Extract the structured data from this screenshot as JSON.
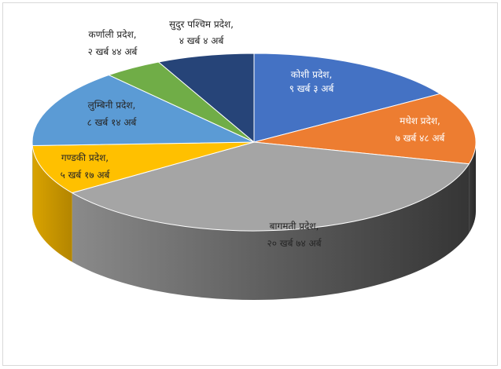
{
  "chart_data": {
    "type": "pie",
    "style": "3d",
    "title": "",
    "slices": [
      {
        "category": "कोशी प्रदेश,",
        "value_text": "९ खर्ब ३ अर्ब",
        "value": 903,
        "color": "#4472c4",
        "label_color": "#ffffff"
      },
      {
        "category": "मधेश प्रदेश,",
        "value_text": "७ खर्ब ४८ अर्ब",
        "value": 748,
        "color": "#ed7d31",
        "label_color": "#ffffff"
      },
      {
        "category": "बागमती प्रदेश,",
        "value_text": "२० खर्ब ७४ अर्ब",
        "value": 2074,
        "color": "#a5a5a5",
        "label_color": "#262626"
      },
      {
        "category": "गण्डकी प्रदेश,",
        "value_text": "५ खर्ब १७ अर्ब",
        "value": 517,
        "color": "#ffc000",
        "label_color": "#262626"
      },
      {
        "category": "लुम्बिनी प्रदेश,",
        "value_text": "८ खर्ब १४ अर्ब",
        "value": 814,
        "color": "#5b9bd5",
        "label_color": "#262626"
      },
      {
        "category": "कर्णाली प्रदेश,",
        "value_text": "२ खर्ब ४४ अर्ब",
        "value": 244,
        "color": "#70ad47",
        "label_color": "#262626"
      },
      {
        "category": "सुदुर पश्चिम प्रदेश,",
        "value_text": "४ खर्ब ४ अर्ब",
        "value": 404,
        "color": "#264478",
        "label_color": "#262626"
      }
    ]
  }
}
